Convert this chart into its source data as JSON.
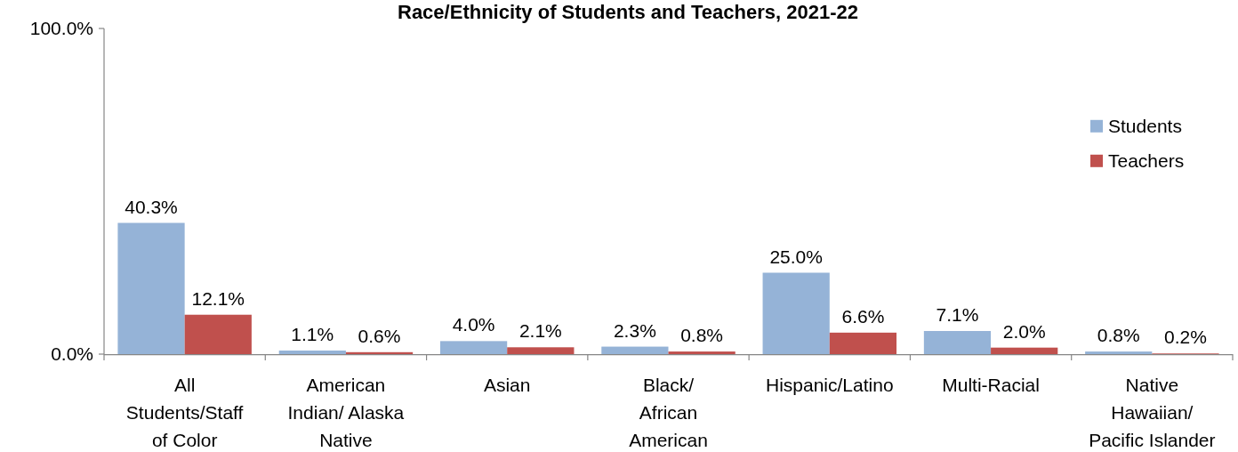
{
  "chart_data": {
    "type": "bar",
    "title": "Race/Ethnicity of Students and Teachers, 2021-22",
    "categories": [
      "All\nStudents/Staff\nof Color",
      "American\nIndian/ Alaska\nNative",
      "Asian",
      "Black/\nAfrican\nAmerican",
      "Hispanic/Latino",
      "Multi-Racial",
      "Native\nHawaiian/\nPacific Islander"
    ],
    "series": [
      {
        "name": "Students",
        "color": "#95b3d7",
        "values": [
          40.3,
          1.1,
          4.0,
          2.3,
          25.0,
          7.1,
          0.8
        ],
        "value_labels": [
          "40.3%",
          "1.1%",
          "4.0%",
          "2.3%",
          "25.0%",
          "7.1%",
          "0.8%"
        ]
      },
      {
        "name": "Teachers",
        "color": "#c0504d",
        "values": [
          12.1,
          0.6,
          2.1,
          0.8,
          6.6,
          2.0,
          0.2
        ],
        "value_labels": [
          "12.1%",
          "0.6%",
          "2.1%",
          "0.8%",
          "6.6%",
          "2.0%",
          "0.2%"
        ]
      }
    ],
    "ylim": [
      0,
      100
    ],
    "yticks": [
      {
        "value": 0,
        "label": "0.0%"
      },
      {
        "value": 100,
        "label": "100.0%"
      }
    ],
    "legend": "right"
  }
}
